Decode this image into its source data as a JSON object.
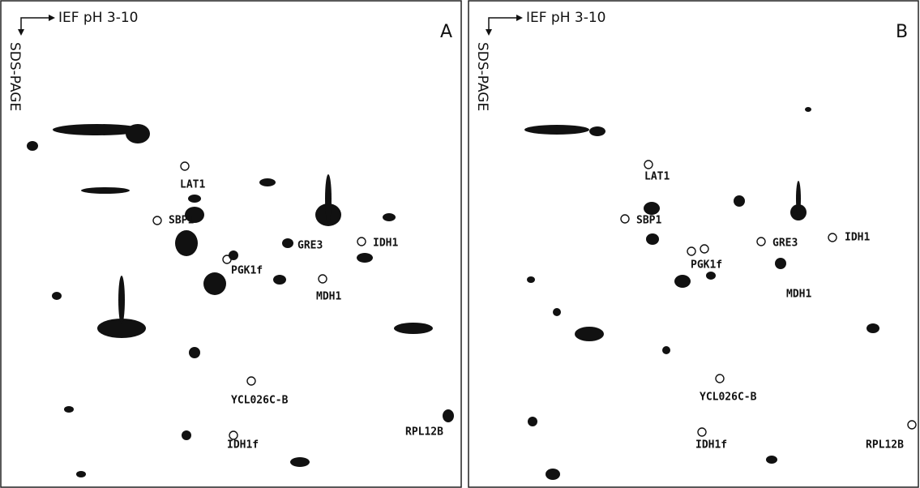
{
  "panels": [
    {
      "letter": "A",
      "x_axis": "IEF pH 3-10",
      "y_axis": "SDS-PAGE",
      "spots": [
        "LAT1",
        "SBP1",
        "PGK1f",
        "GRE3",
        "IDH1",
        "MDH1",
        "YCL026C-B",
        "IDH1f",
        "RPL12B"
      ]
    },
    {
      "letter": "B",
      "x_axis": "IEF pH 3-10",
      "y_axis": "SDS-PAGE",
      "spots": [
        "LAT1",
        "SBP1",
        "PGK1f",
        "GRE3",
        "IDH1",
        "MDH1",
        "YCL026C-B",
        "IDH1f",
        "RPL12B"
      ]
    }
  ]
}
